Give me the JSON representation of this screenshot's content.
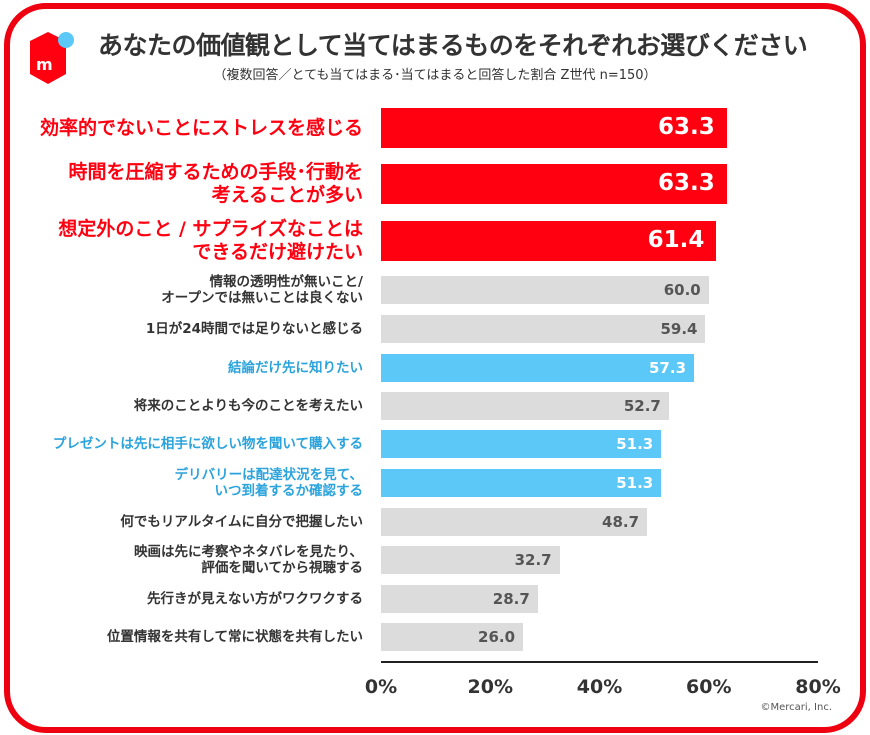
{
  "title": "あなたの価値観として当てはまるものをそれぞれお選びください",
  "subtitle": "（複数回答／とても当てはまる･当てはまると回答した割合 Z世代 n=150）",
  "logo": "mercari-box-logo",
  "copyright": "©Mercari, Inc.",
  "colors": {
    "red": "#ff0011",
    "blue": "#5bc8f8",
    "blue_text": "#2ba3dc",
    "gray": "#dcdcdc",
    "frame": "#ee0011"
  },
  "chart_data": {
    "type": "bar",
    "orientation": "horizontal",
    "unit": "%",
    "xlim": [
      0,
      80
    ],
    "ticks": [
      "0%",
      "20%",
      "40%",
      "60%",
      "80%"
    ],
    "grid": false,
    "categories": [
      "効率的でないことにストレスを感じる",
      "時間を圧縮するための手段･行動を\n考えることが多い",
      "想定外のこと / サプライズなことは\nできるだけ避けたい",
      "情報の透明性が無いこと/\nオープンでは無いことは良くない",
      "1日が24時間では足りないと感じる",
      "結論だけ先に知りたい",
      "将来のことよりも今のことを考えたい",
      "プレゼントは先に相手に欲しい物を聞いて購入する",
      "デリバリーは配達状況を見て、\nいつ到着するか確認する",
      "何でもリアルタイムに自分で把握したい",
      "映画は先に考察やネタバレを見たり、\n評価を聞いてから視聴する",
      "先行きが見えない方がワクワクする",
      "位置情報を共有して常に状態を共有したい"
    ],
    "values": [
      63.3,
      63.3,
      61.4,
      60.0,
      59.4,
      57.3,
      52.7,
      51.3,
      51.3,
      48.7,
      32.7,
      28.7,
      26.0
    ],
    "value_labels": [
      "63.3",
      "63.3",
      "61.4",
      "60.0",
      "59.4",
      "57.3",
      "52.7",
      "51.3",
      "51.3",
      "48.7",
      "32.7",
      "28.7",
      "26.0"
    ],
    "highlight": [
      "red",
      "red",
      "red",
      "gray",
      "gray",
      "blue",
      "gray",
      "blue",
      "blue",
      "gray",
      "gray",
      "gray",
      "gray"
    ]
  }
}
